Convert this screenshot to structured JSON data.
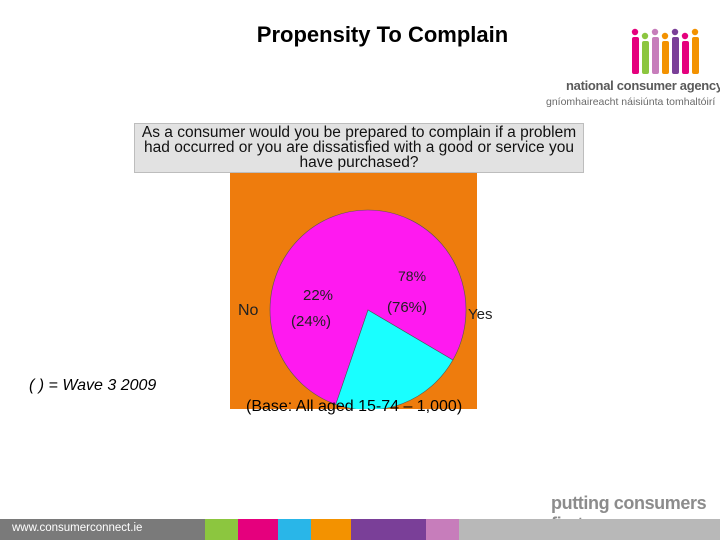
{
  "title": "Propensity To Complain",
  "logo": {
    "line1": "national consumer agency",
    "line2": "gníomhaireacht náisiúnta tomhaltóirí",
    "colors": [
      "#e5007d",
      "#8cc63f",
      "#c77dbb",
      "#f39200",
      "#7a3f98",
      "#e5007d",
      "#f39200"
    ]
  },
  "question": "As a consumer would you be prepared to complain if a problem had occurred or you are dissatisfied with a good or service you have purchased?",
  "chart_data": {
    "type": "pie",
    "slices": [
      {
        "label": "Yes",
        "value": 78,
        "value_text": "78%",
        "previous_value": 76,
        "previous_text": "(76%)",
        "color": "#ff19f0"
      },
      {
        "label": "No",
        "value": 22,
        "value_text": "22%",
        "previous_value": 24,
        "previous_text": "(24%)",
        "color": "#19ffff"
      }
    ],
    "plot_background": "#ee7c0d"
  },
  "legend_note": "( ) = Wave 3 2009",
  "base_note": "(Base: All aged 15-74 – 1,000)",
  "tagline": "putting consumers first",
  "footer": {
    "url": "www.consumerconnect.ie",
    "colors": [
      "#7a7a7a",
      "#8cc63f",
      "#e5007d",
      "#29b6e8",
      "#f39200",
      "#7a3f98",
      "#c77dbb",
      "#b8b8b8"
    ]
  }
}
